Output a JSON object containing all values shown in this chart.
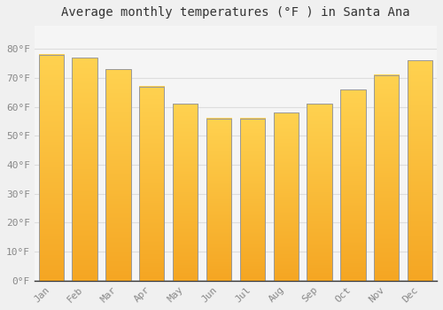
{
  "title": "Average monthly temperatures (°F ) in Santa Ana",
  "months": [
    "Jan",
    "Feb",
    "Mar",
    "Apr",
    "May",
    "Jun",
    "Jul",
    "Aug",
    "Sep",
    "Oct",
    "Nov",
    "Dec"
  ],
  "values": [
    78,
    77,
    73,
    67,
    61,
    56,
    56,
    58,
    61,
    66,
    71,
    76
  ],
  "bar_color_bottom": "#F5A623",
  "bar_color_top": "#FFD966",
  "bar_edge_color": "#999999",
  "background_color": "#F0F0F0",
  "plot_bg_color": "#F5F5F5",
  "grid_color": "#DDDDDD",
  "tick_label_color": "#888888",
  "title_color": "#333333",
  "ylim": [
    0,
    88
  ],
  "yticks": [
    0,
    10,
    20,
    30,
    40,
    50,
    60,
    70,
    80
  ],
  "ytick_labels": [
    "0°F",
    "10°F",
    "20°F",
    "30°F",
    "40°F",
    "50°F",
    "60°F",
    "70°F",
    "80°F"
  ],
  "title_fontsize": 10,
  "tick_fontsize": 8,
  "bar_width": 0.75
}
